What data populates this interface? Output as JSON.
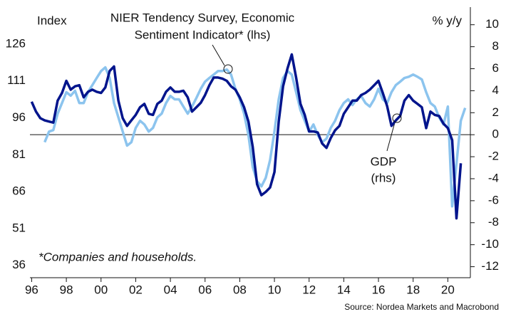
{
  "chart_data": {
    "type": "line",
    "y_label": "Index",
    "y2_label": "% y/y",
    "footnote": "*Companies and households.",
    "source": "Source: Nordea Markets and Macrobond",
    "xlim": [
      1995.9,
      2021.3
    ],
    "xticks": [
      {
        "value": 1996,
        "label": "96"
      },
      {
        "value": 1998,
        "label": "98"
      },
      {
        "value": 2000,
        "label": "00"
      },
      {
        "value": 2002,
        "label": "02"
      },
      {
        "value": 2004,
        "label": "04"
      },
      {
        "value": 2006,
        "label": "06"
      },
      {
        "value": 2008,
        "label": "08"
      },
      {
        "value": 2010,
        "label": "10"
      },
      {
        "value": 2012,
        "label": "12"
      },
      {
        "value": 2014,
        "label": "14"
      },
      {
        "value": 2016,
        "label": "16"
      },
      {
        "value": 2018,
        "label": "18"
      },
      {
        "value": 2020,
        "label": "20"
      }
    ],
    "ylim": [
      31,
      141
    ],
    "yticks": [
      36,
      51,
      66,
      81,
      96,
      111,
      126
    ],
    "y2lim": [
      -13,
      11.6
    ],
    "y2ticks": [
      -12,
      -10,
      -8,
      -6,
      -4,
      -2,
      0,
      2,
      4,
      6,
      8,
      10
    ],
    "hline": {
      "axis": "y2",
      "value": 0
    },
    "x": [
      1996,
      1996.25,
      1996.5,
      1996.75,
      1997,
      1997.25,
      1997.5,
      1997.75,
      1998,
      1998.25,
      1998.5,
      1998.75,
      1999,
      1999.25,
      1999.5,
      1999.75,
      2000,
      2000.25,
      2000.5,
      2000.75,
      2001,
      2001.25,
      2001.5,
      2001.75,
      2002,
      2002.25,
      2002.5,
      2002.75,
      2003,
      2003.25,
      2003.5,
      2003.75,
      2004,
      2004.25,
      2004.5,
      2004.75,
      2005,
      2005.25,
      2005.5,
      2005.75,
      2006,
      2006.25,
      2006.5,
      2006.75,
      2007,
      2007.25,
      2007.5,
      2007.75,
      2008,
      2008.25,
      2008.5,
      2008.75,
      2009,
      2009.25,
      2009.5,
      2009.75,
      2010,
      2010.25,
      2010.5,
      2010.75,
      2011,
      2011.25,
      2011.5,
      2011.75,
      2012,
      2012.25,
      2012.5,
      2012.75,
      2013,
      2013.25,
      2013.5,
      2013.75,
      2014,
      2014.25,
      2014.5,
      2014.75,
      2015,
      2015.25,
      2015.5,
      2015.75,
      2016,
      2016.25,
      2016.5,
      2016.75,
      2017,
      2017.25,
      2017.5,
      2017.75,
      2018,
      2018.25,
      2018.5,
      2018.75,
      2019,
      2019.25,
      2019.5,
      2019.75,
      2020,
      2020.25,
      2020.5,
      2020.75,
      2021
    ],
    "series": [
      {
        "label": [
          "NIER Tendency Survey, Economic",
          "Sentiment Indicator* (lhs)"
        ],
        "color": "#8cc4ee",
        "width": 3.5,
        "axis": "y",
        "values": [
          null,
          null,
          null,
          86.1,
          90.4,
          91.0,
          97.7,
          102,
          106.4,
          105,
          107,
          102,
          102,
          106.4,
          109.3,
          112.2,
          115,
          116.5,
          112.2,
          102,
          96.2,
          90.4,
          84.7,
          86.1,
          91.9,
          94.8,
          93.3,
          90.4,
          91.9,
          96.2,
          97.7,
          102,
          104.9,
          103.5,
          103.5,
          100.6,
          97.7,
          100.6,
          104.1,
          107.8,
          110.7,
          112.2,
          113.6,
          115,
          115,
          115.6,
          113.6,
          107.8,
          103.5,
          97.7,
          89,
          76,
          70.2,
          68.1,
          71.6,
          78.9,
          90.4,
          103.5,
          112.2,
          115,
          113.6,
          106.4,
          99.1,
          94.8,
          90.4,
          93.3,
          89,
          86.1,
          87.5,
          91.9,
          94.8,
          99.1,
          102,
          103.5,
          101.2,
          103.5,
          104.9,
          102,
          100.6,
          103.5,
          107.8,
          103.5,
          102,
          106.4,
          109.3,
          110.7,
          112.2,
          112.7,
          113.6,
          112.7,
          111.6,
          106.4,
          102,
          100.6,
          96.2,
          93.3,
          100.6,
          60,
          77.4,
          94.8,
          100
        ]
      },
      {
        "label": [
          "GDP",
          "(rhs)"
        ],
        "color": "#00148c",
        "width": 3.5,
        "axis": "y2",
        "values": [
          3.0,
          2.1,
          1.5,
          1.3,
          1.2,
          1.1,
          3.1,
          3.8,
          4.9,
          4.1,
          4.4,
          4.5,
          3.4,
          3.9,
          4.1,
          3.9,
          3.8,
          4.3,
          5.8,
          6.2,
          3.1,
          1.5,
          0.8,
          1.3,
          1.8,
          2.5,
          2.8,
          1.9,
          1.8,
          2.8,
          3.1,
          3.9,
          4.3,
          3.9,
          3.9,
          4.0,
          3.4,
          2.1,
          2.5,
          2.9,
          3.6,
          4.5,
          5.2,
          5.2,
          5.1,
          4.9,
          4.4,
          4.1,
          3.4,
          2.5,
          1.2,
          -1.1,
          -4.5,
          -5.5,
          -5.2,
          -4.8,
          -3.4,
          1.2,
          4.4,
          6.0,
          7.3,
          5.2,
          2.8,
          1.8,
          0.3,
          0.3,
          0.2,
          -0.8,
          -1.2,
          -0.3,
          0.4,
          0.8,
          1.9,
          2.5,
          3.1,
          3.1,
          3.6,
          3.8,
          4.1,
          4.5,
          4.9,
          3.8,
          2.6,
          0.8,
          1.3,
          1.7,
          3.1,
          3.6,
          3.1,
          2.8,
          2.5,
          0.6,
          2.1,
          1.8,
          1.7,
          1.0,
          0.6,
          -0.5,
          -7.6,
          -2.6,
          null
        ]
      }
    ]
  }
}
